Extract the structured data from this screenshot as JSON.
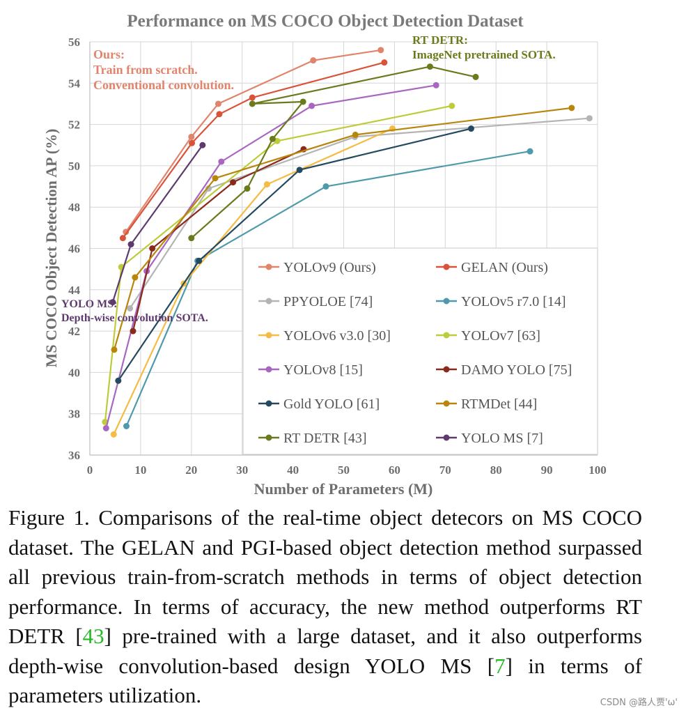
{
  "chart_data": {
    "type": "line",
    "title": "Performance on MS COCO Object Detection Dataset",
    "xlabel": "Number of Parameters (M)",
    "ylabel": "MS COCO Object Detection AP (%)",
    "xlim": [
      0,
      100
    ],
    "ylim": [
      36,
      56
    ],
    "xticks": [
      0,
      10,
      20,
      30,
      40,
      50,
      60,
      70,
      80,
      90,
      100
    ],
    "yticks": [
      36,
      38,
      40,
      42,
      44,
      46,
      48,
      50,
      52,
      54,
      56
    ],
    "grid": true,
    "legend_position": "bottom-right",
    "series": [
      {
        "name": "YOLOv9 (Ours)",
        "color": "#e0846c",
        "x": [
          7.1,
          20.0,
          25.3,
          44.0,
          57.3
        ],
        "y": [
          46.8,
          51.4,
          53.0,
          55.1,
          55.6
        ]
      },
      {
        "name": "GELAN (Ours)",
        "color": "#d9533a",
        "x": [
          6.5,
          20.1,
          25.5,
          32.0,
          58.0
        ],
        "y": [
          46.5,
          51.1,
          52.5,
          53.3,
          55.0
        ]
      },
      {
        "name": "PPYOLOE [74]",
        "color": "#b4b4b4",
        "x": [
          7.9,
          23.4,
          52.2,
          98.4
        ],
        "y": [
          43.1,
          48.9,
          51.4,
          52.3
        ]
      },
      {
        "name": "YOLOv5 r7.0 [14]",
        "color": "#4e9aab",
        "x": [
          7.2,
          21.2,
          46.5,
          86.7
        ],
        "y": [
          37.4,
          45.4,
          49.0,
          50.7
        ]
      },
      {
        "name": "YOLOv6 v3.0 [30]",
        "color": "#f5bc45",
        "x": [
          4.7,
          18.5,
          34.9,
          59.6
        ],
        "y": [
          37.0,
          44.3,
          49.1,
          51.8
        ]
      },
      {
        "name": "YOLOv7 [63]",
        "color": "#bccc3a",
        "x": [
          3.0,
          6.2,
          36.9,
          71.3
        ],
        "y": [
          37.6,
          45.1,
          51.2,
          52.9
        ]
      },
      {
        "name": "YOLOv8 [15]",
        "color": "#a866c0",
        "x": [
          3.2,
          11.2,
          25.9,
          43.7,
          68.2
        ],
        "y": [
          37.3,
          44.9,
          50.2,
          52.9,
          53.9
        ]
      },
      {
        "name": "DAMO YOLO [75]",
        "color": "#8a2a1c",
        "x": [
          8.5,
          12.3,
          28.2,
          42.1
        ],
        "y": [
          42.0,
          46.0,
          49.2,
          50.8
        ]
      },
      {
        "name": "Gold YOLO [61]",
        "color": "#234a60",
        "x": [
          5.6,
          21.5,
          41.3,
          75.1
        ],
        "y": [
          39.6,
          45.4,
          49.8,
          51.8
        ]
      },
      {
        "name": "RTMDet [44]",
        "color": "#b8860b",
        "x": [
          4.8,
          8.9,
          24.7,
          52.3,
          94.9
        ],
        "y": [
          41.1,
          44.6,
          49.4,
          51.5,
          52.8
        ]
      },
      {
        "name": "RT DETR [43]",
        "color": "#6b7a1c",
        "x": [
          20.0,
          31.0,
          36.0,
          42.0,
          32.0,
          67.0,
          76.0
        ],
        "y": [
          46.5,
          48.9,
          51.3,
          53.1,
          53.0,
          54.8,
          54.3
        ]
      },
      {
        "name": "YOLO MS [7]",
        "color": "#5e3a6e",
        "x": [
          4.5,
          8.1,
          22.2
        ],
        "y": [
          43.4,
          46.2,
          51.0
        ]
      }
    ],
    "annotations": [
      {
        "lines": [
          "Ours:",
          "Train from scratch.",
          "Conventional convolution."
        ],
        "color": "#e0846c",
        "bold": false
      },
      {
        "lines": [
          "RT DETR:",
          "ImageNet pretrained SOTA."
        ],
        "color": "#6b7a1c",
        "bold": true
      },
      {
        "lines": [
          "YOLO MS:",
          "Depth-wise convolution SOTA."
        ],
        "color": "#5e3a6e",
        "bold": true
      }
    ]
  },
  "caption": {
    "prefix": "Figure 1.  Comparisons of the real-time object detecors on MS COCO dataset.  The GELAN and PGI-based object detection method surpassed all previous train-from-scratch methods in terms of object detection performance.  In terms of accuracy, the new method outperforms RT DETR [",
    "ref1": "43",
    "middle": "] pre-trained with a large dataset, and it also outperforms depth-wise convolution-based design YOLO MS [",
    "ref2": "7",
    "suffix": "] in terms of parameters utilization."
  },
  "watermark": "CSDN @路人贾'ω'"
}
